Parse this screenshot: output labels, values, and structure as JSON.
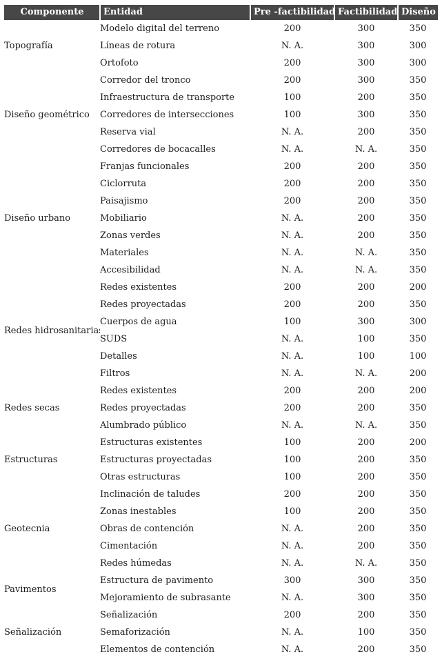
{
  "table": {
    "columns": [
      "Componente",
      "Entidad",
      "Pre -factibilidad",
      "Factibilidad",
      "Diseño"
    ],
    "na_text": "N. A.",
    "groups": [
      {
        "componente": "Topografía",
        "rows": [
          {
            "entidad": "Modelo digital del terreno",
            "pre": "200",
            "fact": "300",
            "dis": "350"
          },
          {
            "entidad": "Líneas de rotura",
            "pre": "N. A.",
            "fact": "300",
            "dis": "300"
          },
          {
            "entidad": "Ortofoto",
            "pre": "200",
            "fact": "300",
            "dis": "300"
          }
        ]
      },
      {
        "componente": "Diseño geométrico",
        "rows": [
          {
            "entidad": "Corredor del tronco",
            "pre": "200",
            "fact": "300",
            "dis": "350"
          },
          {
            "entidad": "Infraestructura de transporte",
            "pre": "100",
            "fact": "200",
            "dis": "350"
          },
          {
            "entidad": "Corredores de intersecciones",
            "pre": "100",
            "fact": "300",
            "dis": "350"
          },
          {
            "entidad": "Reserva vial",
            "pre": "N. A.",
            "fact": "200",
            "dis": "350"
          },
          {
            "entidad": "Corredores de bocacalles",
            "pre": "N. A.",
            "fact": "N. A.",
            "dis": "350"
          }
        ]
      },
      {
        "componente": "Diseño urbano",
        "rows": [
          {
            "entidad": "Franjas funcionales",
            "pre": "200",
            "fact": "200",
            "dis": "350"
          },
          {
            "entidad": "Ciclorruta",
            "pre": "200",
            "fact": "200",
            "dis": "350"
          },
          {
            "entidad": "Paisajismo",
            "pre": "200",
            "fact": "200",
            "dis": "350"
          },
          {
            "entidad": "Mobiliario",
            "pre": "N. A.",
            "fact": "200",
            "dis": "350"
          },
          {
            "entidad": "Zonas verdes",
            "pre": "N. A.",
            "fact": "200",
            "dis": "350"
          },
          {
            "entidad": "Materiales",
            "pre": "N. A.",
            "fact": "N. A.",
            "dis": "350"
          },
          {
            "entidad": "Accesibilidad",
            "pre": "N. A.",
            "fact": "N. A.",
            "dis": "350"
          }
        ]
      },
      {
        "componente": "Redes hidrosanitarias",
        "rows": [
          {
            "entidad": "Redes existentes",
            "pre": "200",
            "fact": "200",
            "dis": "200"
          },
          {
            "entidad": "Redes proyectadas",
            "pre": "200",
            "fact": "200",
            "dis": "350"
          },
          {
            "entidad": "Cuerpos de agua",
            "pre": "100",
            "fact": "300",
            "dis": "300"
          },
          {
            "entidad": "SUDS",
            "pre": "N. A.",
            "fact": "100",
            "dis": "350"
          },
          {
            "entidad": "Detalles",
            "pre": "N. A.",
            "fact": "100",
            "dis": "100"
          },
          {
            "entidad": "Filtros",
            "pre": "N. A.",
            "fact": "N. A.",
            "dis": "200"
          }
        ]
      },
      {
        "componente": "Redes secas",
        "rows": [
          {
            "entidad": "Redes existentes",
            "pre": "200",
            "fact": "200",
            "dis": "200"
          },
          {
            "entidad": "Redes proyectadas",
            "pre": "200",
            "fact": "200",
            "dis": "350"
          },
          {
            "entidad": "Alumbrado público",
            "pre": "N. A.",
            "fact": "N. A.",
            "dis": "350"
          }
        ]
      },
      {
        "componente": "Estructuras",
        "rows": [
          {
            "entidad": "Estructuras existentes",
            "pre": "100",
            "fact": "200",
            "dis": "200"
          },
          {
            "entidad": "Estructuras proyectadas",
            "pre": "100",
            "fact": "200",
            "dis": "350"
          },
          {
            "entidad": "Otras estructuras",
            "pre": "100",
            "fact": "200",
            "dis": "350"
          }
        ]
      },
      {
        "componente": "Geotecnia",
        "rows": [
          {
            "entidad": "Inclinación de taludes",
            "pre": "200",
            "fact": "200",
            "dis": "350"
          },
          {
            "entidad": "Zonas inestables",
            "pre": "100",
            "fact": "200",
            "dis": "350"
          },
          {
            "entidad": "Obras de contención",
            "pre": "N. A.",
            "fact": "200",
            "dis": "350"
          },
          {
            "entidad": "Cimentación",
            "pre": "N. A.",
            "fact": "200",
            "dis": "350"
          },
          {
            "entidad": "Redes húmedas",
            "pre": "N. A.",
            "fact": "N. A.",
            "dis": "350"
          }
        ]
      },
      {
        "componente": "Pavimentos",
        "rows": [
          {
            "entidad": "Estructura de pavimento",
            "pre": "300",
            "fact": "300",
            "dis": "350"
          },
          {
            "entidad": "Mejoramiento de subrasante",
            "pre": "N. A.",
            "fact": "300",
            "dis": "350"
          }
        ]
      },
      {
        "componente": "Señalización",
        "rows": [
          {
            "entidad": "Señalización",
            "pre": "200",
            "fact": "200",
            "dis": "350"
          },
          {
            "entidad": "Semaforización",
            "pre": "N. A.",
            "fact": "100",
            "dis": "350"
          },
          {
            "entidad": "Elementos de contención",
            "pre": "N. A.",
            "fact": "200",
            "dis": "350"
          }
        ]
      }
    ]
  },
  "colors": {
    "header_bg": "#474747",
    "header_text": "#ffffff",
    "body_text": "#1c1c1c",
    "page_bg": "#ffffff",
    "header_divider": "#ffffff"
  }
}
